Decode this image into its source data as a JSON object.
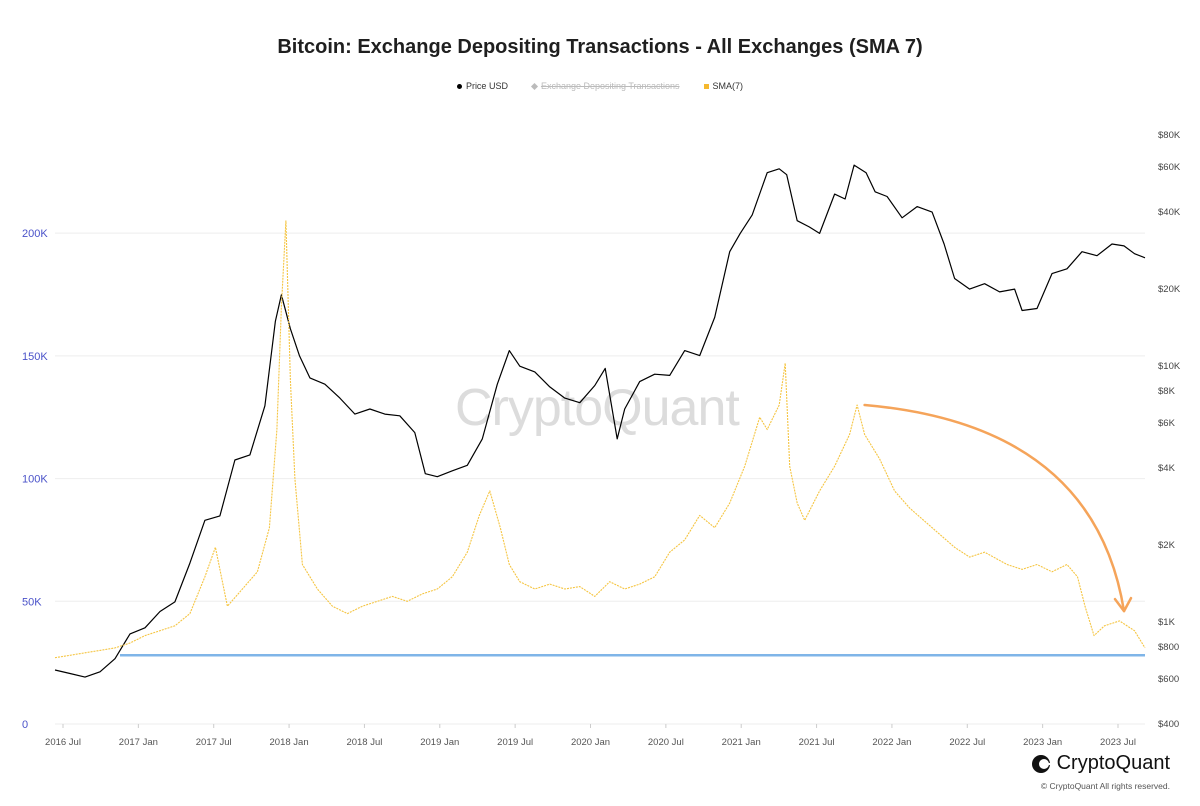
{
  "chart_data": {
    "type": "line",
    "title": "Bitcoin: Exchange Depositing Transactions - All Exchanges (SMA 7)",
    "legend": [
      {
        "name": "Price USD",
        "color": "#000000",
        "enabled": true
      },
      {
        "name": "Exchange Depositing Transactions",
        "color": "#bbbbbb",
        "enabled": false
      },
      {
        "name": "SMA(7)",
        "color": "#f5b82e",
        "enabled": true
      }
    ],
    "x_ticks": [
      "2016 Jul",
      "2017 Jan",
      "2017 Jul",
      "2018 Jan",
      "2018 Jul",
      "2019 Jan",
      "2019 Jul",
      "2020 Jan",
      "2020 Jul",
      "2021 Jan",
      "2021 Jul",
      "2022 Jan",
      "2022 Jul",
      "2023 Jan",
      "2023 Jul"
    ],
    "x_range": [
      2016.45,
      2023.72
    ],
    "y_left": {
      "ticks": [
        "0",
        "50K",
        "100K",
        "150K",
        "200K"
      ],
      "values": [
        0,
        50000,
        100000,
        150000,
        200000
      ],
      "range": [
        0,
        240000
      ]
    },
    "y_right": {
      "scale": "log",
      "ticks": [
        "$400",
        "$600",
        "$800",
        "$1K",
        "$2K",
        "$4K",
        "$6K",
        "$8K",
        "$10K",
        "$20K",
        "$40K",
        "$60K",
        "$80K"
      ],
      "values": [
        400,
        600,
        800,
        1000,
        2000,
        4000,
        6000,
        8000,
        10000,
        20000,
        40000,
        60000,
        80000
      ]
    },
    "series": [
      {
        "name": "Price USD",
        "axis": "right",
        "color": "#000000",
        "x": [
          2016.45,
          2016.55,
          2016.65,
          2016.75,
          2016.85,
          2016.95,
          2017.05,
          2017.15,
          2017.25,
          2017.35,
          2017.45,
          2017.55,
          2017.65,
          2017.75,
          2017.85,
          2017.92,
          2017.96,
          2018.02,
          2018.08,
          2018.15,
          2018.25,
          2018.35,
          2018.45,
          2018.55,
          2018.65,
          2018.75,
          2018.85,
          2018.92,
          2019.0,
          2019.1,
          2019.2,
          2019.3,
          2019.4,
          2019.48,
          2019.55,
          2019.65,
          2019.75,
          2019.85,
          2019.95,
          2020.05,
          2020.12,
          2020.2,
          2020.25,
          2020.35,
          2020.45,
          2020.55,
          2020.65,
          2020.75,
          2020.85,
          2020.95,
          2021.02,
          2021.1,
          2021.2,
          2021.28,
          2021.33,
          2021.4,
          2021.48,
          2021.55,
          2021.65,
          2021.72,
          2021.78,
          2021.86,
          2021.92,
          2022.0,
          2022.1,
          2022.2,
          2022.3,
          2022.38,
          2022.45,
          2022.55,
          2022.65,
          2022.75,
          2022.85,
          2022.9,
          2023.0,
          2023.1,
          2023.2,
          2023.3,
          2023.4,
          2023.5,
          2023.58,
          2023.65,
          2023.72
        ],
        "values": [
          650,
          630,
          610,
          640,
          720,
          900,
          950,
          1100,
          1200,
          1700,
          2500,
          2600,
          4300,
          4500,
          7000,
          15000,
          19000,
          14000,
          11000,
          9000,
          8500,
          7500,
          6500,
          6800,
          6500,
          6400,
          5500,
          3800,
          3700,
          3900,
          4100,
          5200,
          8500,
          11500,
          10000,
          9500,
          8300,
          7500,
          7200,
          8400,
          9800,
          5200,
          6800,
          8700,
          9300,
          9200,
          11500,
          11000,
          15500,
          28000,
          33000,
          39000,
          57000,
          59000,
          56000,
          37000,
          35000,
          33000,
          47000,
          45000,
          61000,
          57000,
          48000,
          46000,
          38000,
          42000,
          40000,
          30000,
          22000,
          20000,
          21000,
          19500,
          20000,
          16500,
          16800,
          23000,
          24000,
          28000,
          27000,
          30000,
          29500,
          27500,
          26500
        ]
      },
      {
        "name": "SMA(7)",
        "axis": "left",
        "color": "#f5c542",
        "x": [
          2016.45,
          2016.55,
          2016.65,
          2016.75,
          2016.85,
          2016.95,
          2017.05,
          2017.15,
          2017.25,
          2017.35,
          2017.45,
          2017.52,
          2017.6,
          2017.7,
          2017.8,
          2017.88,
          2017.93,
          2017.96,
          2017.99,
          2018.02,
          2018.05,
          2018.1,
          2018.2,
          2018.3,
          2018.4,
          2018.5,
          2018.6,
          2018.7,
          2018.8,
          2018.9,
          2019.0,
          2019.1,
          2019.2,
          2019.28,
          2019.35,
          2019.42,
          2019.48,
          2019.55,
          2019.65,
          2019.75,
          2019.85,
          2019.95,
          2020.05,
          2020.15,
          2020.25,
          2020.35,
          2020.45,
          2020.55,
          2020.65,
          2020.75,
          2020.85,
          2020.95,
          2021.05,
          2021.1,
          2021.15,
          2021.2,
          2021.28,
          2021.32,
          2021.35,
          2021.4,
          2021.45,
          2021.55,
          2021.65,
          2021.75,
          2021.8,
          2021.85,
          2021.95,
          2022.05,
          2022.15,
          2022.3,
          2022.45,
          2022.55,
          2022.65,
          2022.8,
          2022.9,
          2023.0,
          2023.1,
          2023.2,
          2023.27,
          2023.32,
          2023.38,
          2023.45,
          2023.55,
          2023.65,
          2023.72
        ],
        "values": [
          27000,
          28000,
          29000,
          30000,
          31000,
          33000,
          36000,
          38000,
          40000,
          45000,
          60000,
          72000,
          48000,
          55000,
          62000,
          80000,
          120000,
          170000,
          205000,
          140000,
          100000,
          65000,
          55000,
          48000,
          45000,
          48000,
          50000,
          52000,
          50000,
          53000,
          55000,
          60000,
          70000,
          85000,
          95000,
          80000,
          65000,
          58000,
          55000,
          57000,
          55000,
          56000,
          52000,
          58000,
          55000,
          57000,
          60000,
          70000,
          75000,
          85000,
          80000,
          90000,
          105000,
          115000,
          125000,
          120000,
          130000,
          147000,
          105000,
          90000,
          83000,
          95000,
          105000,
          118000,
          130000,
          118000,
          108000,
          95000,
          88000,
          80000,
          72000,
          68000,
          70000,
          65000,
          63000,
          65000,
          62000,
          65000,
          60000,
          48000,
          36000,
          40000,
          42000,
          38000,
          31000
        ]
      }
    ],
    "reference_line": {
      "axis": "left",
      "value": 28000,
      "color": "#7fb5e8"
    },
    "annotation_arrow": {
      "color": "#f5a45a",
      "from": {
        "x": 2021.85,
        "y": 130000
      },
      "to": {
        "x": 2023.58,
        "y": 46000
      }
    }
  },
  "watermark": "CryptoQuant",
  "brand": {
    "name": "CryptoQuant",
    "copyright": "© CryptoQuant All rights reserved."
  }
}
